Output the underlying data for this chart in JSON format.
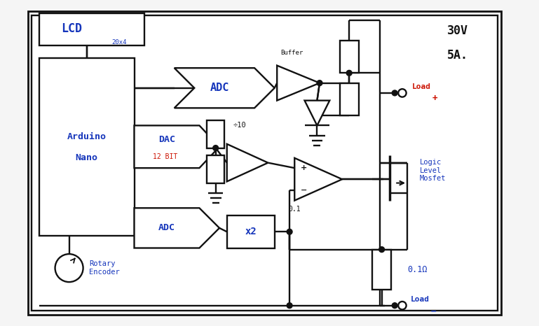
{
  "bg_color": "#f5f5f5",
  "line_color": "#111111",
  "blue_color": "#1535bb",
  "red_color": "#cc1100",
  "figsize": [
    7.69,
    4.66
  ],
  "dpi": 100,
  "xlim": [
    0,
    10
  ],
  "ylim": [
    0,
    6.5
  ]
}
